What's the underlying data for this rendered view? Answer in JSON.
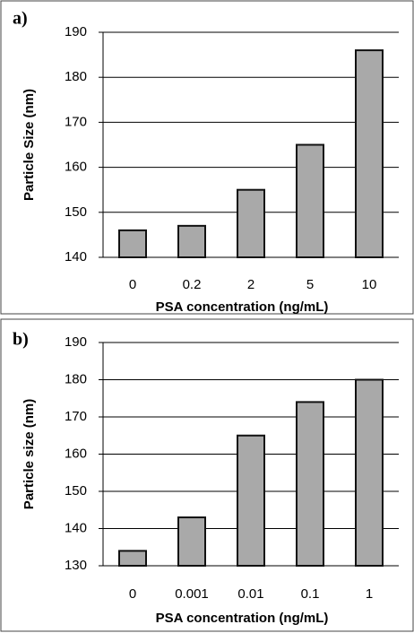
{
  "chart_data": [
    {
      "type": "bar",
      "label": "a)",
      "y_label": "Particle Size (nm)",
      "x_label": "PSA concentration (ng/mL)",
      "categories": [
        "0",
        "0.2",
        "2",
        "5",
        "10"
      ],
      "values": [
        146,
        147,
        155,
        165,
        186
      ],
      "ylim": [
        140,
        190
      ],
      "yticks": [
        140,
        150,
        160,
        170,
        180,
        190
      ],
      "grid": true,
      "color": "#a9a9a9"
    },
    {
      "type": "bar",
      "label": "b)",
      "y_label": "Particle size (nm)",
      "x_label": "PSA concentration (ng/mL)",
      "categories": [
        "0",
        "0.001",
        "0.01",
        "0.1",
        "1"
      ],
      "values": [
        134,
        143,
        165,
        174,
        180
      ],
      "ylim": [
        130,
        190
      ],
      "yticks": [
        130,
        140,
        150,
        160,
        170,
        180,
        190
      ],
      "grid": true,
      "color": "#a9a9a9"
    }
  ]
}
